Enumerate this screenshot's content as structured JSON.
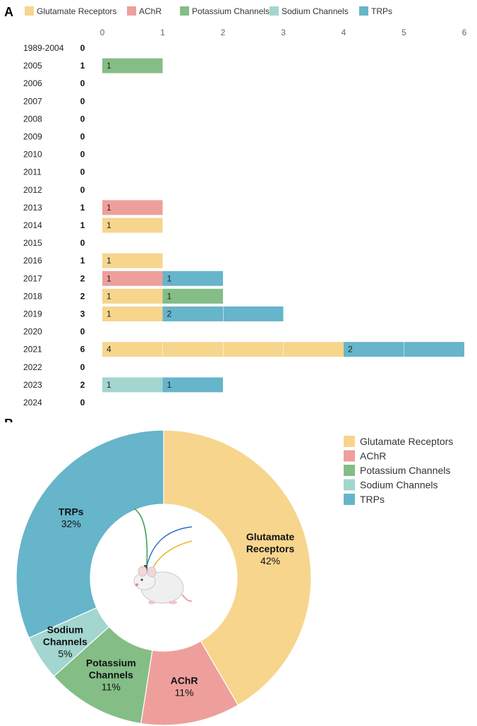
{
  "panel_labels": {
    "a": "A",
    "b": "B"
  },
  "colors": {
    "Glutamate Receptors": "#f7d58d",
    "AChR": "#ee9f9c",
    "Potassium Channels": "#84bd86",
    "Sodium Channels": "#a2d6cf",
    "TRPs": "#66b5ca"
  },
  "chart_data": [
    {
      "type": "bar",
      "orientation": "horizontal",
      "stacked": true,
      "legend": [
        "Glutamate Receptors",
        "AChR",
        "Potassium Channels",
        "Sodium Channels",
        "TRPs"
      ],
      "legend_position": "top",
      "xlim": [
        0,
        6
      ],
      "xticks": [
        0,
        1,
        2,
        3,
        4,
        5,
        6
      ],
      "categories": [
        "1989-2004",
        "2005",
        "2006",
        "2007",
        "2008",
        "2009",
        "2010",
        "2011",
        "2012",
        "2013",
        "2014",
        "2015",
        "2016",
        "2017",
        "2018",
        "2019",
        "2020",
        "2021",
        "2022",
        "2023",
        "2024"
      ],
      "totals": [
        0,
        1,
        0,
        0,
        0,
        0,
        0,
        0,
        0,
        1,
        1,
        0,
        1,
        2,
        2,
        3,
        0,
        6,
        0,
        2,
        0
      ],
      "series": [
        {
          "name": "Glutamate Receptors",
          "values": [
            0,
            0,
            0,
            0,
            0,
            0,
            0,
            0,
            0,
            0,
            1,
            0,
            1,
            0,
            1,
            1,
            0,
            4,
            0,
            0,
            0
          ]
        },
        {
          "name": "AChR",
          "values": [
            0,
            0,
            0,
            0,
            0,
            0,
            0,
            0,
            0,
            1,
            0,
            0,
            0,
            1,
            0,
            0,
            0,
            0,
            0,
            0,
            0
          ]
        },
        {
          "name": "Potassium Channels",
          "values": [
            0,
            1,
            0,
            0,
            0,
            0,
            0,
            0,
            0,
            0,
            0,
            0,
            0,
            0,
            1,
            0,
            0,
            0,
            0,
            0,
            0
          ]
        },
        {
          "name": "Sodium Channels",
          "values": [
            0,
            0,
            0,
            0,
            0,
            0,
            0,
            0,
            0,
            0,
            0,
            0,
            0,
            0,
            0,
            0,
            0,
            0,
            0,
            1,
            0
          ]
        },
        {
          "name": "TRPs",
          "values": [
            0,
            0,
            0,
            0,
            0,
            0,
            0,
            0,
            0,
            0,
            0,
            0,
            0,
            1,
            0,
            2,
            0,
            2,
            0,
            1,
            0
          ]
        }
      ]
    },
    {
      "type": "pie",
      "donut": true,
      "legend_position": "top-right",
      "slices": [
        {
          "label": "Glutamate Receptors",
          "lines": [
            "Glutamate",
            "Receptors"
          ],
          "percent": 42,
          "display": "42%"
        },
        {
          "label": "AChR",
          "lines": [
            "AChR"
          ],
          "percent": 11,
          "display": "11%"
        },
        {
          "label": "Potassium Channels",
          "lines": [
            "Potassium",
            "Channels"
          ],
          "percent": 11,
          "display": "11%"
        },
        {
          "label": "Sodium Channels",
          "lines": [
            "Sodium",
            "Channels"
          ],
          "percent": 5,
          "display": "5%"
        },
        {
          "label": "TRPs",
          "lines": [
            "TRPs"
          ],
          "percent": 32,
          "display": "32%"
        }
      ],
      "center_image": "mouse-with-implanted-electrodes"
    }
  ]
}
